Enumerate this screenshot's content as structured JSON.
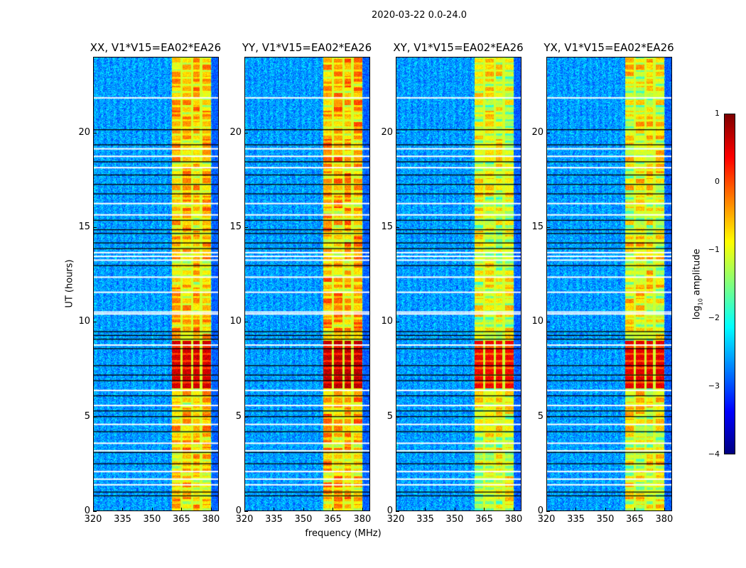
{
  "chart_data": {
    "type": "heatmap",
    "title": "2020-03-22 0.0-24.0",
    "xlabel": "frequency (MHz)",
    "ylabel": "UT (hours)",
    "xlim": [
      320,
      384
    ],
    "ylim": [
      0,
      24
    ],
    "xticks": [
      "320",
      "335",
      "350",
      "365",
      "380"
    ],
    "xtick_values": [
      320,
      335,
      350,
      365,
      380
    ],
    "yticks": [
      "0",
      "5",
      "10",
      "15",
      "20"
    ],
    "ytick_values": [
      0,
      5,
      10,
      15,
      20
    ],
    "panels": [
      {
        "title": "XX, V1*V15=EA02*EA26",
        "band_level": -0.5,
        "burst_level": 0.6
      },
      {
        "title": "YY, V1*V15=EA02*EA26",
        "band_level": -0.4,
        "burst_level": 0.7
      },
      {
        "title": "XY, V1*V15=EA02*EA26",
        "band_level": -0.9,
        "burst_level": 0.4
      },
      {
        "title": "YX, V1*V15=EA02*EA26",
        "band_level": -0.8,
        "burst_level": 0.5
      }
    ],
    "background_level": -2.6,
    "rfi_band_mhz": [
      360,
      380
    ],
    "subband_gaps_mhz": [
      365,
      370.5,
      375
    ],
    "strong_interval_ut": [
      6.5,
      9.0
    ],
    "flagged_white_ut": [
      21.9,
      19.2,
      18.8,
      18.2,
      16.3,
      15.7,
      13.7,
      13.5,
      13.3,
      12.4,
      11.6,
      10.55,
      10.45,
      8.8,
      6.4,
      5.6,
      4.6,
      3.6,
      3.2,
      2.1,
      1.7,
      1.4
    ],
    "flagged_black_ut": [
      20.2,
      19.4,
      18.5,
      17.8,
      17.3,
      16.8,
      15.4,
      14.9,
      14.7,
      14.2,
      13.9,
      13.0,
      9.5,
      9.3,
      9.1,
      8.6,
      7.7,
      7.2,
      6.9,
      6.1,
      5.3,
      5.0,
      4.2,
      3.1,
      2.5,
      1.0,
      0.8
    ],
    "colorbar": {
      "label_main": "log",
      "label_sub": "10",
      "label_rest": " amplitude",
      "range": [
        -4,
        1
      ],
      "ticks": [
        "1",
        "0",
        "−1",
        "−2",
        "−3",
        "−4"
      ],
      "tick_values": [
        1,
        0,
        -1,
        -2,
        -3,
        -4
      ],
      "colormap": "jet"
    }
  }
}
